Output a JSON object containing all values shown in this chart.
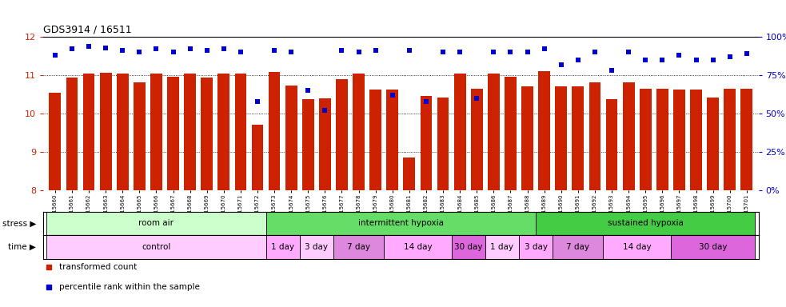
{
  "title": "GDS3914 / 16511",
  "samples": [
    "GSM215660",
    "GSM215661",
    "GSM215662",
    "GSM215663",
    "GSM215664",
    "GSM215665",
    "GSM215666",
    "GSM215667",
    "GSM215668",
    "GSM215669",
    "GSM215670",
    "GSM215671",
    "GSM215672",
    "GSM215673",
    "GSM215674",
    "GSM215675",
    "GSM215676",
    "GSM215677",
    "GSM215678",
    "GSM215679",
    "GSM215680",
    "GSM215681",
    "GSM215682",
    "GSM215683",
    "GSM215684",
    "GSM215685",
    "GSM215686",
    "GSM215687",
    "GSM215688",
    "GSM215689",
    "GSM215690",
    "GSM215691",
    "GSM215692",
    "GSM215693",
    "GSM215694",
    "GSM215695",
    "GSM215696",
    "GSM215697",
    "GSM215698",
    "GSM215699",
    "GSM215700",
    "GSM215701"
  ],
  "bar_values": [
    10.55,
    10.93,
    11.05,
    11.07,
    11.05,
    10.82,
    11.05,
    10.97,
    11.05,
    10.93,
    11.05,
    11.05,
    9.72,
    11.08,
    10.73,
    10.38,
    10.4,
    10.9,
    11.05,
    10.63,
    10.63,
    8.85,
    10.45,
    10.41,
    11.05,
    10.65,
    11.05,
    10.97,
    10.72,
    11.1,
    10.72,
    10.72,
    10.82,
    10.38,
    10.82,
    10.65,
    10.65,
    10.63,
    10.63,
    10.42,
    10.65,
    10.65
  ],
  "percentile_values": [
    88,
    92,
    94,
    93,
    91,
    90,
    92,
    90,
    92,
    91,
    92,
    90,
    58,
    91,
    90,
    65,
    52,
    91,
    90,
    91,
    62,
    91,
    58,
    90,
    90,
    60,
    90,
    90,
    90,
    92,
    82,
    85,
    90,
    78,
    90,
    85,
    85,
    88,
    85,
    85,
    87,
    89
  ],
  "ylim_left": [
    8,
    12
  ],
  "ylim_right": [
    0,
    100
  ],
  "yticks_left": [
    8,
    9,
    10,
    11,
    12
  ],
  "yticks_right": [
    0,
    25,
    50,
    75,
    100
  ],
  "bar_color": "#cc2200",
  "marker_color": "#0000cc",
  "stress_groups": [
    {
      "label": "room air",
      "start": 0,
      "end": 13,
      "color": "#ccffcc"
    },
    {
      "label": "intermittent hypoxia",
      "start": 13,
      "end": 29,
      "color": "#66dd66"
    },
    {
      "label": "sustained hypoxia",
      "start": 29,
      "end": 42,
      "color": "#44cc44"
    }
  ],
  "time_groups": [
    {
      "label": "control",
      "start": 0,
      "end": 13,
      "color": "#ffccff"
    },
    {
      "label": "1 day",
      "start": 13,
      "end": 15,
      "color": "#ffaaff"
    },
    {
      "label": "3 day",
      "start": 15,
      "end": 17,
      "color": "#ffccff"
    },
    {
      "label": "7 day",
      "start": 17,
      "end": 20,
      "color": "#dd88dd"
    },
    {
      "label": "14 day",
      "start": 20,
      "end": 24,
      "color": "#ffaaff"
    },
    {
      "label": "30 day",
      "start": 24,
      "end": 26,
      "color": "#dd66dd"
    },
    {
      "label": "1 day",
      "start": 26,
      "end": 28,
      "color": "#ffccff"
    },
    {
      "label": "3 day",
      "start": 28,
      "end": 30,
      "color": "#ffaaff"
    },
    {
      "label": "7 day",
      "start": 30,
      "end": 33,
      "color": "#dd88dd"
    },
    {
      "label": "14 day",
      "start": 33,
      "end": 37,
      "color": "#ffaaff"
    },
    {
      "label": "30 day",
      "start": 37,
      "end": 42,
      "color": "#dd66dd"
    }
  ],
  "legend_items": [
    {
      "label": "transformed count",
      "color": "#cc2200"
    },
    {
      "label": "percentile rank within the sample",
      "color": "#0000cc"
    }
  ],
  "fig_width": 9.83,
  "fig_height": 3.84,
  "dpi": 100
}
